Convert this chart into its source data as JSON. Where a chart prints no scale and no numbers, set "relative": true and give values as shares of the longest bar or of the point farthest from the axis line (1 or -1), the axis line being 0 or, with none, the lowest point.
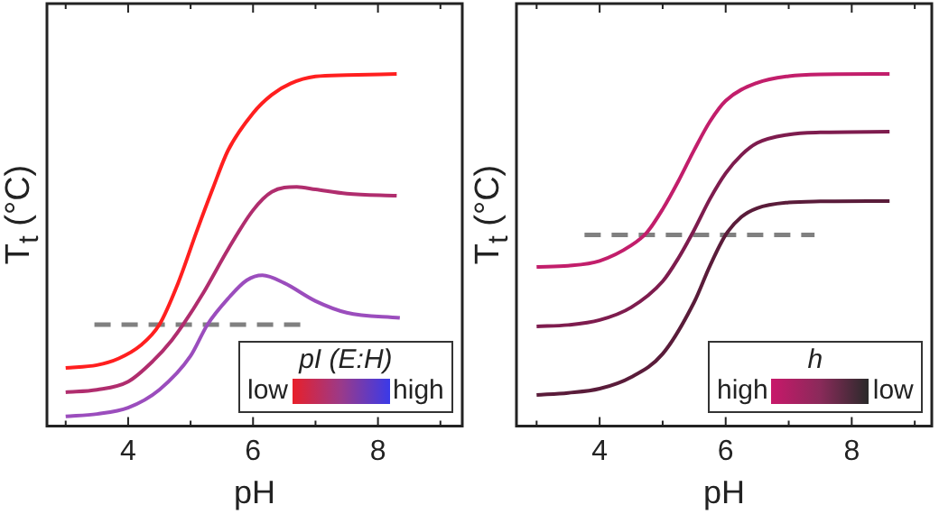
{
  "chart_data": [
    {
      "type": "line",
      "xlabel": "pH",
      "ylabel": "T$_{t}$ (°C)",
      "legend_title": "pI (E:H)",
      "annotations": [
        "low",
        "high"
      ],
      "relative": true,
      "marker": "none",
      "xlim": [
        2.7,
        9.35
      ],
      "xticks": [
        {
          "value": 3,
          "label": null
        },
        4,
        {
          "value": 5,
          "label": null
        },
        6,
        {
          "value": 7,
          "label": null
        },
        8,
        {
          "value": 9,
          "label": null
        }
      ],
      "series": [
        {
          "color": "#ff1f1f",
          "x": [
            3,
            3.5,
            3.85,
            4.2,
            4.5,
            4.8,
            5.1,
            5.35,
            5.6,
            6,
            6.3,
            6.6,
            7,
            7.5,
            8.3
          ],
          "values": [
            0.165,
            0.173,
            0.192,
            0.229,
            0.288,
            0.406,
            0.554,
            0.672,
            0.783,
            0.889,
            0.941,
            0.973,
            0.993,
            0.997,
            1
          ]
        },
        {
          "color": "#b02d6e",
          "x": [
            3,
            3.5,
            4,
            4.4,
            4.7,
            4.88,
            5.2,
            5.6,
            6,
            6.3,
            6.7,
            7,
            7.5,
            8.3
          ],
          "values": [
            0.096,
            0.103,
            0.126,
            0.185,
            0.244,
            0.288,
            0.377,
            0.502,
            0.613,
            0.665,
            0.679,
            0.672,
            0.66,
            0.654
          ]
        },
        {
          "color": "#9b4dbd",
          "x": [
            3,
            3.5,
            4,
            4.5,
            5,
            5.27,
            5.6,
            5.9,
            6.15,
            6.5,
            7,
            7.5,
            8.35
          ],
          "values": [
            0.027,
            0.034,
            0.052,
            0.103,
            0.199,
            0.288,
            0.362,
            0.414,
            0.428,
            0.406,
            0.355,
            0.322,
            0.307
          ]
        },
        {
          "color": "#808080",
          "line_style": "dashed",
          "x": [
            3.46,
            6.78
          ],
          "values": [
            0.288,
            0.288
          ]
        }
      ]
    },
    {
      "type": "line",
      "xlabel": "pH",
      "ylabel": "T$_{t}$ (°C)",
      "legend_title": "h",
      "annotations": [
        "high",
        "low"
      ],
      "relative": true,
      "marker": "none",
      "xlim": [
        2.68,
        9.27
      ],
      "xticks": [
        {
          "value": 3,
          "label": null
        },
        4,
        {
          "value": 5,
          "label": null
        },
        6,
        {
          "value": 7,
          "label": null
        },
        8,
        {
          "value": 9,
          "label": null
        }
      ],
      "series": [
        {
          "color": "#c21e6b",
          "x": [
            3,
            3.5,
            4,
            4.5,
            4.75,
            5,
            5.25,
            5.5,
            5.75,
            6,
            6.5,
            7,
            7.5,
            8.6
          ],
          "values": [
            0.452,
            0.455,
            0.469,
            0.513,
            0.55,
            0.616,
            0.696,
            0.784,
            0.865,
            0.924,
            0.975,
            0.994,
            0.999,
            1
          ]
        },
        {
          "color": "#7e1c4e",
          "x": [
            3,
            3.5,
            4,
            4.5,
            5,
            5.25,
            5.5,
            5.75,
            6,
            6.25,
            6.5,
            7,
            7.5,
            8.6
          ],
          "values": [
            0.283,
            0.287,
            0.301,
            0.337,
            0.411,
            0.477,
            0.557,
            0.645,
            0.718,
            0.77,
            0.804,
            0.828,
            0.834,
            0.836
          ]
        },
        {
          "color": "#5a1c3a",
          "x": [
            3,
            3.5,
            4,
            4.5,
            5,
            5.5,
            5.75,
            6,
            6.25,
            6.5,
            7,
            7.5,
            8.6
          ],
          "values": [
            0.088,
            0.094,
            0.106,
            0.139,
            0.205,
            0.352,
            0.455,
            0.543,
            0.594,
            0.619,
            0.635,
            0.638,
            0.639
          ]
        },
        {
          "color": "#808080",
          "line_style": "dashed",
          "x": [
            3.76,
            7.41
          ],
          "values": [
            0.543,
            0.543
          ]
        }
      ]
    }
  ]
}
